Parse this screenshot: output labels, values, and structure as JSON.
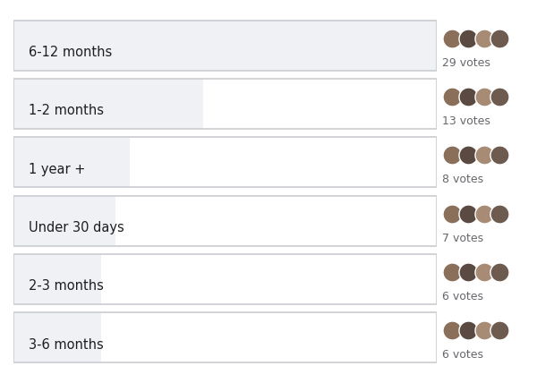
{
  "chart_data": {
    "type": "bar",
    "orientation": "horizontal",
    "categories": [
      "6-12 months",
      "1-2 months",
      "1 year +",
      "Under 30 days",
      "2-3 months",
      "3-6 months"
    ],
    "values": [
      29,
      13,
      8,
      7,
      6,
      6
    ],
    "value_labels": [
      "29 votes",
      "13 votes",
      "8 votes",
      "7 votes",
      "6 votes",
      "6 votes"
    ],
    "data_labels": true,
    "tick_labels": false,
    "xlim": [
      0,
      29
    ],
    "color": "#f0f1f5"
  }
}
